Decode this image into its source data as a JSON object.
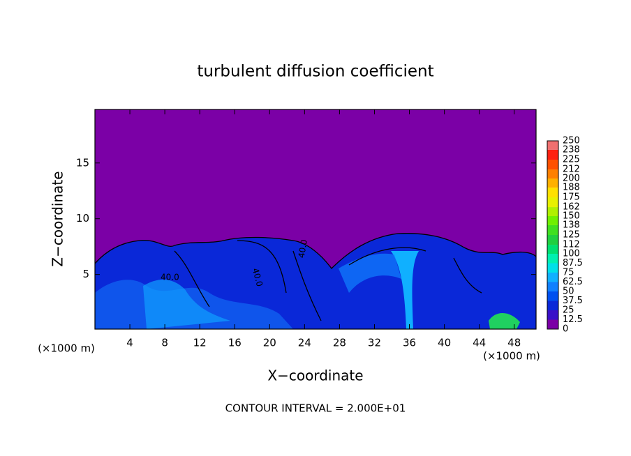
{
  "chart_data": {
    "type": "heatmap",
    "title": "turbulent diffusion coefficient",
    "xlabel": "X−coordinate",
    "ylabel": "Z−coordinate",
    "x_unit_labels": [
      "(×1000 m)",
      "(×1000 m)"
    ],
    "footer": "CONTOUR INTERVAL = 2.000E+01",
    "contour_labels": [
      "40.0",
      "40.0",
      "40.0"
    ],
    "xlim": [
      0,
      50.5
    ],
    "xticks": [
      4,
      8,
      12,
      16,
      20,
      24,
      28,
      32,
      36,
      40,
      44,
      48
    ],
    "ylim": [
      0.1,
      19.8
    ],
    "yticks": [
      5,
      10,
      15
    ],
    "colorbar": {
      "levels": [
        0,
        12.5,
        25,
        37.5,
        50,
        62.5,
        75,
        87.5,
        100,
        112,
        125,
        138,
        150,
        162,
        175,
        188,
        200,
        212,
        225,
        238,
        250
      ],
      "colors": [
        "#7b00a6",
        "#3a10c8",
        "#0a28d8",
        "#0050f0",
        "#1080ff",
        "#10b0ff",
        "#00e0e8",
        "#00f0b0",
        "#00e070",
        "#20d040",
        "#40e020",
        "#70f000",
        "#b0f000",
        "#e8f000",
        "#ffe000",
        "#ffb000",
        "#ff8000",
        "#ff5000",
        "#ff2010",
        "#f07070"
      ]
    }
  }
}
